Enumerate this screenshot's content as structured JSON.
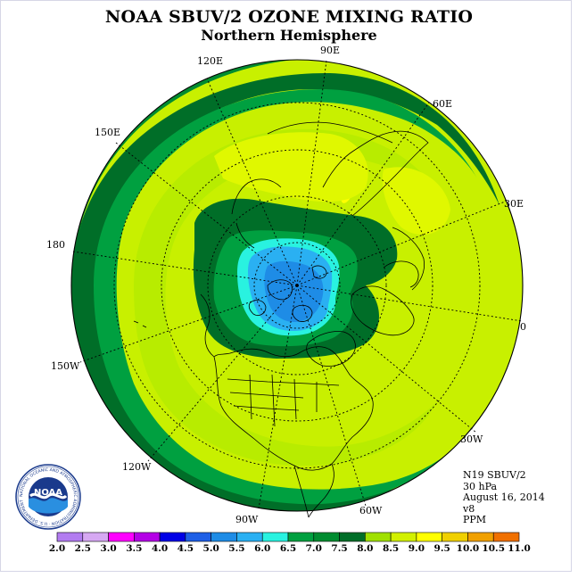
{
  "title": "NOAA SBUV/2 OZONE MIXING RATIO",
  "subtitle": "Northern Hemisphere",
  "longitude_labels": [
    {
      "id": "90E",
      "text": "90E"
    },
    {
      "id": "60E",
      "text": "60E"
    },
    {
      "id": "120E",
      "text": "120E"
    },
    {
      "id": "150E",
      "text": "150E"
    },
    {
      "id": "30E",
      "text": "30E"
    },
    {
      "id": "180",
      "text": "180"
    },
    {
      "id": "0",
      "text": "0"
    },
    {
      "id": "150W",
      "text": "150W"
    },
    {
      "id": "30W",
      "text": "30W"
    },
    {
      "id": "120W",
      "text": "120W"
    },
    {
      "id": "60W",
      "text": "60W"
    },
    {
      "id": "90W",
      "text": "90W"
    }
  ],
  "info": {
    "instrument": "N19 SBUV/2",
    "level": "30 hPa",
    "date": "August 16, 2014",
    "version": "v8",
    "units": "PPM"
  },
  "colorbar": {
    "ticks": [
      "2.0",
      "2.5",
      "3.0",
      "3.5",
      "4.0",
      "4.5",
      "5.0",
      "5.5",
      "6.0",
      "6.5",
      "7.0",
      "7.5",
      "8.0",
      "8.5",
      "9.0",
      "9.5",
      "10.0",
      "10.5",
      "11.0"
    ],
    "colors": [
      "#b27cf0",
      "#d6a8f2",
      "#ff00ff",
      "#b400e6",
      "#0000e6",
      "#1e5fe6",
      "#1e8ce6",
      "#2ab0f2",
      "#29f2e0",
      "#00a040",
      "#008c30",
      "#006e28",
      "#a0e000",
      "#d2f000",
      "#ffff00",
      "#f0d000",
      "#f0a000",
      "#f07000",
      "#ff0000",
      "#8c5028"
    ]
  },
  "logo": {
    "text": "NOAA",
    "ring_text": "NATIONAL OCEANIC AND ATMOSPHERIC ADMINISTRATION · U.S. DEPARTMENT OF COMMERCE"
  }
}
